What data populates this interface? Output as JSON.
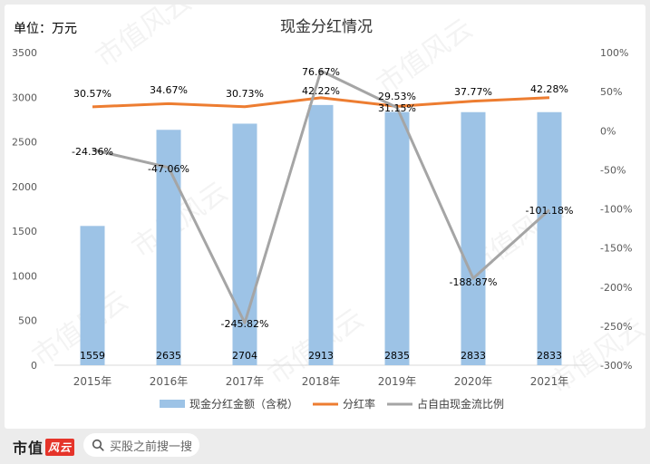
{
  "unit_label": "单位：万元",
  "watermark_text": "市值风云",
  "chart_data": {
    "type": "bar+line",
    "title": "现金分红情况",
    "categories": [
      "2015年",
      "2016年",
      "2017年",
      "2018年",
      "2019年",
      "2020年",
      "2021年"
    ],
    "series": [
      {
        "name": "现金分红金额（含税）",
        "type": "bar",
        "axis": "left",
        "color": "#9dc3e6",
        "values": [
          1559,
          2635,
          2704,
          2913,
          2835,
          2833,
          2833
        ],
        "labels": [
          "1559",
          "2635",
          "2704",
          "2913",
          "2835",
          "2833",
          "2833"
        ]
      },
      {
        "name": "分红率",
        "type": "line",
        "axis": "right",
        "color": "#ed7d31",
        "values": [
          30.57,
          34.67,
          30.73,
          42.22,
          31.15,
          37.77,
          42.28
        ],
        "labels": [
          "30.57%",
          "34.67%",
          "30.73%",
          "42.22%",
          "31.15%",
          "37.77%",
          "42.28%"
        ]
      },
      {
        "name": "占自由现金流比例",
        "type": "line",
        "axis": "right",
        "color": "#a5a5a5",
        "values": [
          -24.36,
          -47.06,
          -245.82,
          76.67,
          29.53,
          -188.87,
          -101.18
        ],
        "labels": [
          "-24.36%",
          "-47.06%",
          "-245.82%",
          "76.67%",
          "29.53%",
          "-188.87%",
          "-101.18%"
        ]
      }
    ],
    "y_left": {
      "range": [
        0,
        3500
      ],
      "ticks": [
        0,
        500,
        1000,
        1500,
        2000,
        2500,
        3000,
        3500
      ],
      "tick_labels": [
        "0",
        "500",
        "1000",
        "1500",
        "2000",
        "2500",
        "3000",
        "3500"
      ]
    },
    "y_right": {
      "range": [
        -300,
        100
      ],
      "ticks": [
        -300,
        -250,
        -200,
        -150,
        -100,
        -50,
        0,
        50,
        100
      ],
      "tick_labels": [
        "-300%",
        "-250%",
        "-200%",
        "-150%",
        "-100%",
        "-50%",
        "0%",
        "50%",
        "100%"
      ]
    },
    "grid": false,
    "legend_position": "bottom"
  },
  "footer": {
    "brand": "市值",
    "brand_mark": "风云",
    "search_placeholder": "买股之前搜一搜"
  }
}
